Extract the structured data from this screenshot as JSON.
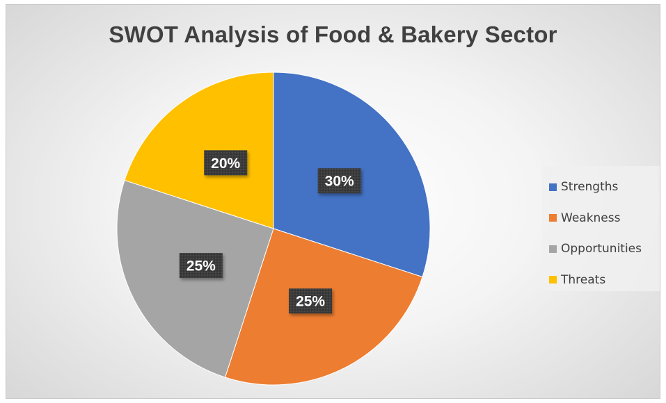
{
  "chart_data": {
    "type": "pie",
    "title": "SWOT Analysis of Food & Bakery Sector",
    "categories": [
      "Strengths",
      "Weakness",
      "Opportunities",
      "Threats"
    ],
    "values": [
      30,
      25,
      25,
      20
    ],
    "data_labels": [
      "30%",
      "25%",
      "25%",
      "20%"
    ],
    "colors": [
      "#4472C4",
      "#ED7D31",
      "#A5A5A5",
      "#FFC000"
    ],
    "legend_position": "right",
    "start_angle_deg": 0,
    "direction": "clockwise"
  }
}
